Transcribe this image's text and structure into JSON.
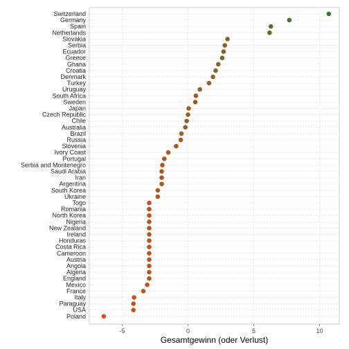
{
  "chart_data": {
    "type": "scatter",
    "orientation": "horizontal-dot",
    "xlabel": "Gesamtgewinn (oder Verlust)",
    "ylabel": "",
    "title": "",
    "xlim": [
      -7.5,
      11.5
    ],
    "xticks": [
      -5,
      0,
      5,
      10
    ],
    "grid": true,
    "colors": {
      "low": "#d94b1f",
      "high": "#2f7d32"
    },
    "points": [
      {
        "label": "Switzerland",
        "value": 10.7
      },
      {
        "label": "Germany",
        "value": 7.7
      },
      {
        "label": "Spain",
        "value": 6.3
      },
      {
        "label": "Netherlands",
        "value": 6.2
      },
      {
        "label": "Slovakia",
        "value": 3.0
      },
      {
        "label": "Serbia",
        "value": 2.8
      },
      {
        "label": "Ecuador",
        "value": 2.7
      },
      {
        "label": "Greece",
        "value": 2.6
      },
      {
        "label": "Ghana",
        "value": 2.3
      },
      {
        "label": "Croatia",
        "value": 2.1
      },
      {
        "label": "Denmark",
        "value": 1.9
      },
      {
        "label": "Turkey",
        "value": 1.6
      },
      {
        "label": "Uruguay",
        "value": 0.9
      },
      {
        "label": "South Africa",
        "value": 0.6
      },
      {
        "label": "Sweden",
        "value": 0.55
      },
      {
        "label": "Japan",
        "value": 0.05
      },
      {
        "label": "Czech Republic",
        "value": 0.0
      },
      {
        "label": "Chile",
        "value": -0.1
      },
      {
        "label": "Australia",
        "value": -0.2
      },
      {
        "label": "Brazil",
        "value": -0.5
      },
      {
        "label": "Russia",
        "value": -0.55
      },
      {
        "label": "Slovenia",
        "value": -0.9
      },
      {
        "label": "Ivory Coast",
        "value": -1.5
      },
      {
        "label": "Portugal",
        "value": -1.8
      },
      {
        "label": "Serbia and Montenegro",
        "value": -1.95
      },
      {
        "label": "Saudi Arabia",
        "value": -2.0
      },
      {
        "label": "Iran",
        "value": -2.0
      },
      {
        "label": "Argentina",
        "value": -2.0
      },
      {
        "label": "South Korea",
        "value": -2.3
      },
      {
        "label": "Ukraine",
        "value": -2.3
      },
      {
        "label": "Togo",
        "value": -2.95
      },
      {
        "label": "Romania",
        "value": -2.95
      },
      {
        "label": "North Korea",
        "value": -2.95
      },
      {
        "label": "Nigeria",
        "value": -2.95
      },
      {
        "label": "New Zealand",
        "value": -2.95
      },
      {
        "label": "Ireland",
        "value": -2.95
      },
      {
        "label": "Honduras",
        "value": -2.95
      },
      {
        "label": "Costa Rica",
        "value": -2.95
      },
      {
        "label": "Cameroon",
        "value": -2.95
      },
      {
        "label": "Austria",
        "value": -2.95
      },
      {
        "label": "Angola",
        "value": -2.95
      },
      {
        "label": "Algeria",
        "value": -2.95
      },
      {
        "label": "England",
        "value": -2.95
      },
      {
        "label": "Mexico",
        "value": -3.1
      },
      {
        "label": "France",
        "value": -3.4
      },
      {
        "label": "Italy",
        "value": -4.1
      },
      {
        "label": "Paraguay",
        "value": -4.15
      },
      {
        "label": "USA",
        "value": -4.15
      },
      {
        "label": "Poland",
        "value": -6.4
      }
    ]
  }
}
